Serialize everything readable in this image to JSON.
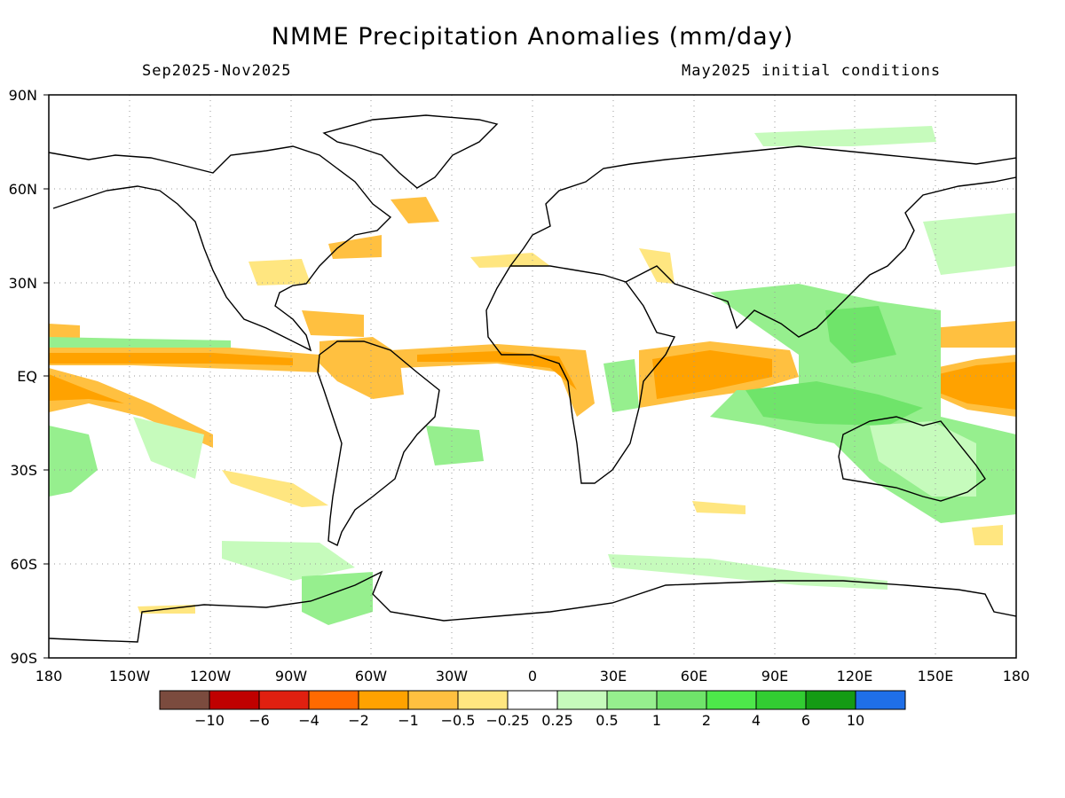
{
  "title": "NMME Precipitation Anomalies (mm/day)",
  "period": "Sep2025-Nov2025",
  "initial_conditions": "May2025 initial conditions",
  "latitude_ticks": [
    "90N",
    "60N",
    "30N",
    "EQ",
    "30S",
    "60S",
    "90S"
  ],
  "longitude_ticks": [
    "180",
    "150W",
    "120W",
    "90W",
    "60W",
    "30W",
    "0",
    "30E",
    "60E",
    "90E",
    "120E",
    "150E",
    "180"
  ],
  "colorbar": {
    "colors": [
      "#7b4b3e",
      "#c00000",
      "#e02010",
      "#ff6a00",
      "#ffa200",
      "#ffc040",
      "#ffe680",
      "#ffffff",
      "#c6fbbc",
      "#96ef8e",
      "#6fe46a",
      "#4de84a",
      "#32cd32",
      "#149b14",
      "#1f6fe8"
    ],
    "labels": [
      "-10",
      "-6",
      "-4",
      "-2",
      "-1",
      "-0.5",
      "-0.25",
      "0.25",
      "0.5",
      "1",
      "2",
      "4",
      "6",
      "10"
    ]
  },
  "colors": {
    "land_outline": "#000000",
    "grid": "#9a9a9a"
  }
}
